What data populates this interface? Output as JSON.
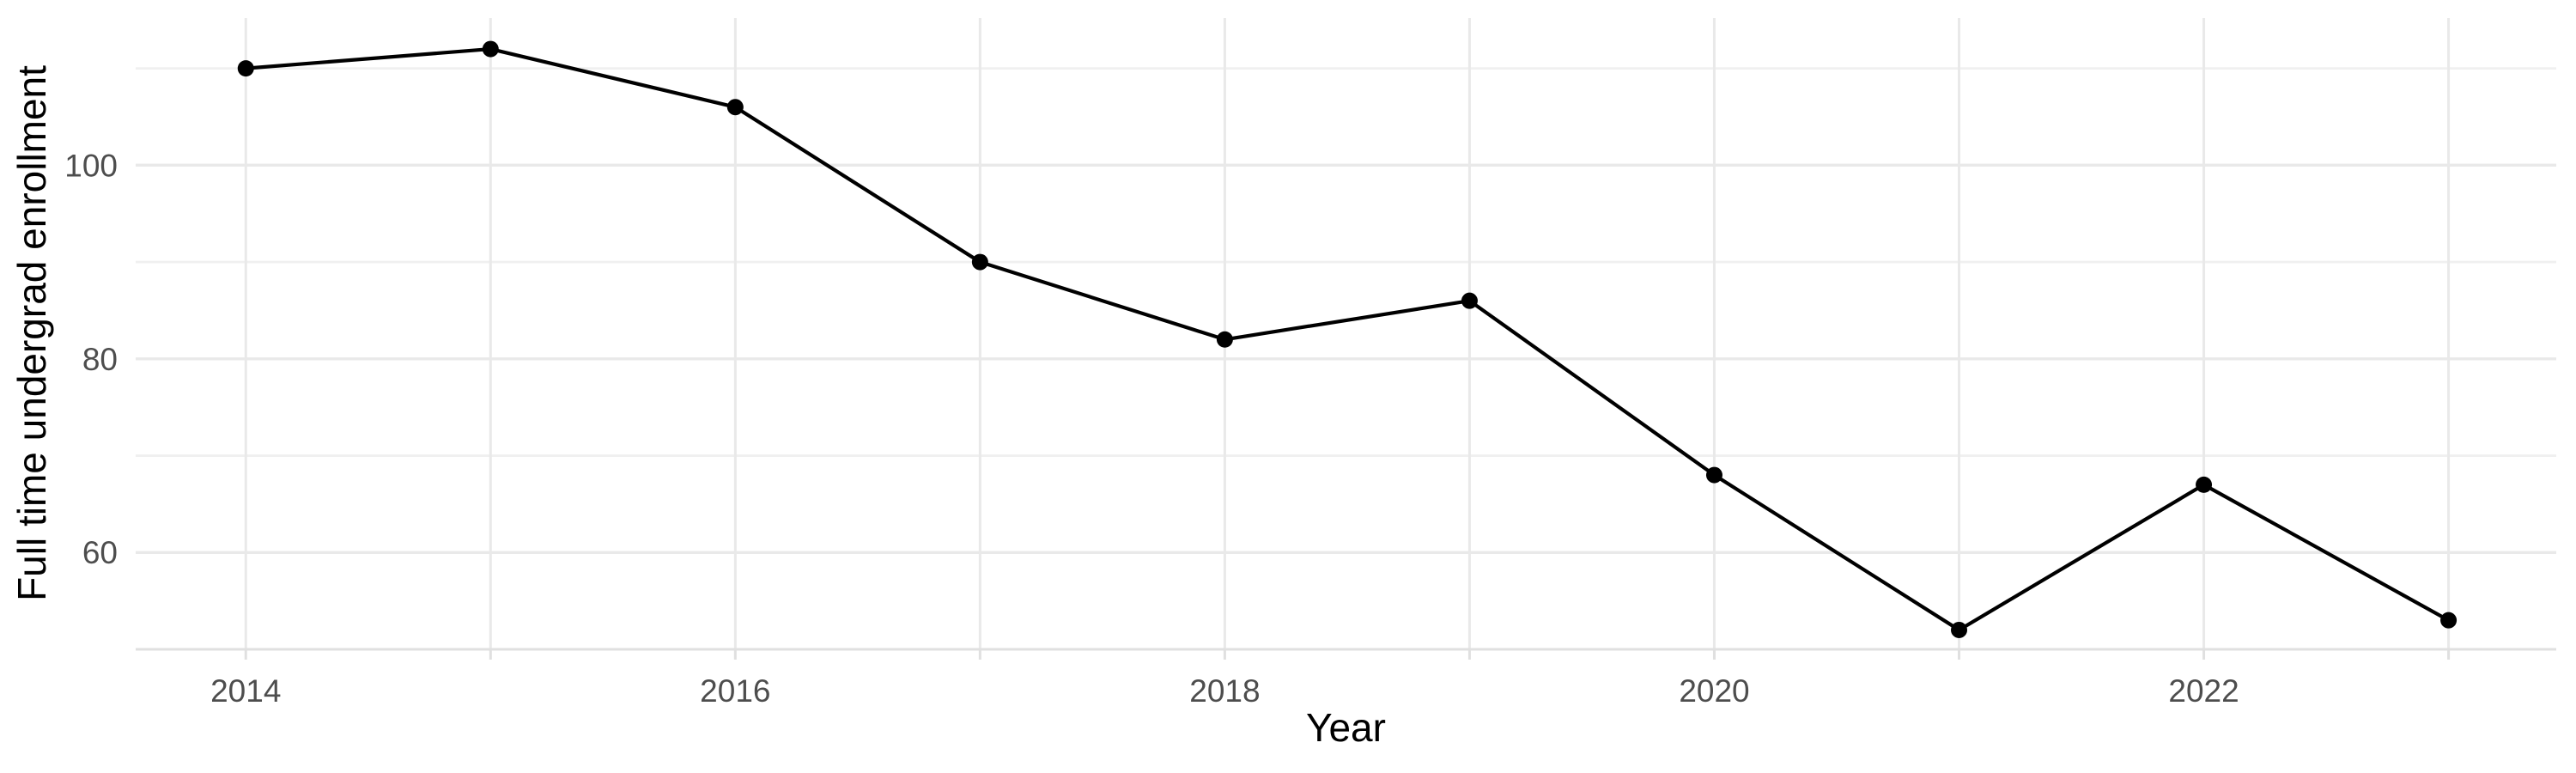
{
  "chart_data": {
    "type": "line",
    "title": "",
    "xlabel": "Year",
    "ylabel": "Full time undergrad enrollment",
    "x": [
      2014,
      2015,
      2016,
      2017,
      2018,
      2019,
      2020,
      2021,
      2022,
      2023
    ],
    "values": [
      110,
      112,
      106,
      90,
      82,
      86,
      68,
      52,
      67,
      53
    ],
    "series": [
      {
        "name": "Full time undergrad enrollment",
        "values": [
          110,
          112,
          106,
          90,
          82,
          86,
          68,
          52,
          67,
          53
        ]
      }
    ],
    "x_tick_positions": [
      2014,
      2016,
      2018,
      2020,
      2022
    ],
    "x_tick_labels": [
      "2014",
      "2016",
      "2018",
      "2020",
      "2022"
    ],
    "y_tick_positions": [
      60,
      80,
      100
    ],
    "y_tick_labels": [
      "60",
      "80",
      "100"
    ],
    "y_minor_gridlines": [
      70,
      90,
      110
    ],
    "xlim": [
      2013.55,
      2023.44
    ],
    "ylim": [
      50,
      115.2
    ],
    "grid": true,
    "legend_position": "none",
    "colors": {
      "line": "#000000",
      "point": "#000000",
      "grid_major": "#E9E9E9",
      "grid_minor": "#F0F0F0",
      "axis_line": "#E0E0E0",
      "tick_label": "#4D4D4D",
      "axis_title": "#000000",
      "background": "#FFFFFF"
    }
  }
}
